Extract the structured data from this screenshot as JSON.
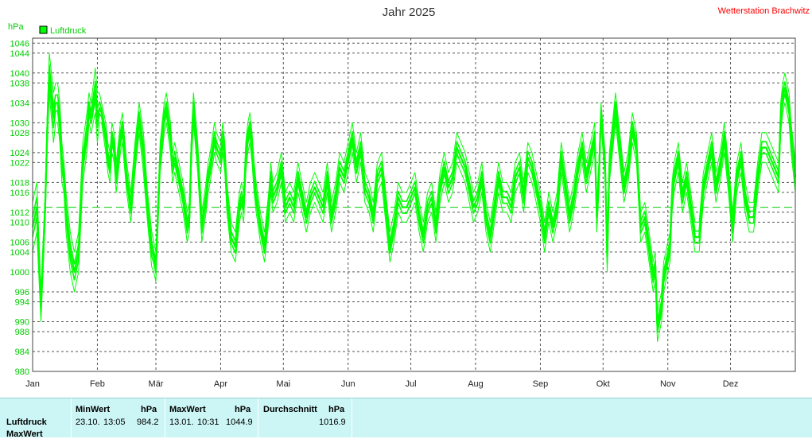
{
  "header": {
    "title": "Jahr 2025",
    "station": "Wetterstation Brachwitz",
    "unit": "hPa"
  },
  "legend": {
    "label": "Luftdruck",
    "color": "#00ff00"
  },
  "chart_data": {
    "type": "line",
    "title": "Jahr 2025",
    "ylabel": "hPa",
    "ylim": [
      980,
      1047
    ],
    "xlim": [
      0,
      365
    ],
    "grid": true,
    "legend": "top-left",
    "yticks": [
      980,
      984,
      988,
      990,
      994,
      996,
      1000,
      1004,
      1006,
      1010,
      1012,
      1016,
      1018,
      1022,
      1024,
      1028,
      1030,
      1034,
      1038,
      1040,
      1044,
      1046
    ],
    "xticks": [
      {
        "day": 0,
        "label": "Jan"
      },
      {
        "day": 31,
        "label": "Feb"
      },
      {
        "day": 59,
        "label": "Mär"
      },
      {
        "day": 90,
        "label": "Apr"
      },
      {
        "day": 120,
        "label": "Mai"
      },
      {
        "day": 151,
        "label": "Jun"
      },
      {
        "day": 181,
        "label": "Jul"
      },
      {
        "day": 212,
        "label": "Aug"
      },
      {
        "day": 243,
        "label": "Sep"
      },
      {
        "day": 273,
        "label": "Okt"
      },
      {
        "day": 304,
        "label": "Nov"
      },
      {
        "day": 334,
        "label": "Dez"
      }
    ],
    "average_line": 1013,
    "series": [
      {
        "name": "Luftdruck",
        "color": "#00ff00",
        "x": [
          0,
          2,
          4,
          5,
          6,
          7,
          8,
          10,
          11,
          12,
          13,
          14,
          15,
          16,
          18,
          20,
          22,
          24,
          26,
          27,
          28,
          30,
          31,
          32,
          33,
          35,
          36,
          37,
          38,
          39,
          40,
          42,
          43,
          45,
          47,
          49,
          51,
          53,
          55,
          57,
          58,
          59,
          61,
          63,
          64,
          66,
          67,
          68,
          70,
          72,
          74,
          75,
          76,
          77,
          79,
          81,
          83,
          84,
          85,
          87,
          88,
          90,
          91,
          92,
          93,
          95,
          97,
          99,
          100,
          101,
          102,
          103,
          104,
          105,
          106,
          107,
          109,
          111,
          113,
          114,
          115,
          117,
          119,
          121,
          123,
          125,
          127,
          129,
          131,
          133,
          135,
          137,
          139,
          141,
          143,
          145,
          147,
          149,
          151,
          153,
          155,
          157,
          159,
          161,
          163,
          165,
          167,
          169,
          171,
          173,
          175,
          177,
          179,
          181,
          183,
          185,
          187,
          189,
          191,
          193,
          195,
          197,
          199,
          201,
          203,
          205,
          207,
          209,
          211,
          213,
          215,
          217,
          219,
          221,
          223,
          225,
          227,
          229,
          231,
          233,
          235,
          237,
          239,
          241,
          243,
          245,
          247,
          249,
          251,
          253,
          255,
          257,
          259,
          261,
          263,
          265,
          267,
          269,
          270,
          271,
          272,
          274,
          275,
          276,
          277,
          278,
          279,
          281,
          283,
          285,
          287,
          289,
          291,
          293,
          295,
          297,
          298,
          299,
          301,
          302,
          303,
          305,
          306,
          307,
          309,
          311,
          313,
          315,
          317,
          319,
          321,
          323,
          325,
          327,
          329,
          331,
          333,
          335,
          337,
          339,
          341,
          343,
          345,
          347,
          349,
          351,
          353,
          355,
          357,
          358,
          359,
          360,
          361,
          362,
          363,
          364,
          365
        ],
        "min": [
          1004,
          1008,
          990,
          1000,
          1010,
          1025,
          1036,
          1026,
          1030,
          1030,
          1026,
          1018,
          1016,
          1008,
          1000,
          996,
          1000,
          1018,
          1024,
          1030,
          1028,
          1032,
          1026,
          1030,
          1030,
          1024,
          1020,
          1018,
          1024,
          1022,
          1016,
          1024,
          1026,
          1016,
          1010,
          1020,
          1028,
          1020,
          1010,
          1001,
          1000,
          998,
          1020,
          1028,
          1030,
          1024,
          1018,
          1020,
          1016,
          1012,
          1006,
          1008,
          1022,
          1030,
          1020,
          1006,
          1012,
          1016,
          1018,
          1024,
          1022,
          1020,
          1024,
          1020,
          1012,
          1004,
          1002,
          1010,
          1012,
          1010,
          1020,
          1024,
          1026,
          1022,
          1016,
          1012,
          1006,
          1002,
          1010,
          1016,
          1012,
          1014,
          1018,
          1010,
          1012,
          1010,
          1016,
          1012,
          1008,
          1012,
          1014,
          1012,
          1010,
          1016,
          1008,
          1012,
          1018,
          1016,
          1020,
          1024,
          1018,
          1022,
          1014,
          1012,
          1008,
          1016,
          1018,
          1010,
          1002,
          1006,
          1012,
          1010,
          1010,
          1012,
          1014,
          1008,
          1004,
          1010,
          1012,
          1006,
          1014,
          1018,
          1014,
          1016,
          1022,
          1020,
          1018,
          1014,
          1010,
          1012,
          1016,
          1008,
          1004,
          1010,
          1016,
          1012,
          1012,
          1010,
          1016,
          1018,
          1012,
          1020,
          1018,
          1014,
          1010,
          1004,
          1010,
          1006,
          1010,
          1020,
          1014,
          1008,
          1012,
          1018,
          1022,
          1016,
          1020,
          1024,
          1008,
          1016,
          1030,
          1018,
          1000,
          1018,
          1022,
          1026,
          1030,
          1022,
          1014,
          1018,
          1026,
          1022,
          1006,
          1008,
          1002,
          996,
          998,
          986,
          990,
          996,
          998,
          1002,
          1012,
          1016,
          1020,
          1012,
          1016,
          1010,
          1004,
          1004,
          1014,
          1018,
          1022,
          1014,
          1018,
          1024,
          1016,
          1006,
          1016,
          1020,
          1012,
          1008,
          1008,
          1016,
          1022,
          1022,
          1020,
          1018,
          1016,
          1028,
          1032,
          1034,
          1032,
          1030,
          1024,
          1020,
          1016
        ],
        "max": [
          1014,
          1018,
          996,
          1006,
          1016,
          1032,
          1044,
          1036,
          1038,
          1038,
          1034,
          1026,
          1022,
          1016,
          1008,
          1004,
          1008,
          1026,
          1032,
          1036,
          1034,
          1041,
          1036,
          1036,
          1034,
          1030,
          1026,
          1024,
          1030,
          1028,
          1022,
          1030,
          1032,
          1022,
          1016,
          1026,
          1034,
          1028,
          1016,
          1008,
          1006,
          1004,
          1026,
          1034,
          1036,
          1030,
          1024,
          1026,
          1022,
          1018,
          1012,
          1014,
          1028,
          1036,
          1026,
          1012,
          1018,
          1022,
          1024,
          1030,
          1028,
          1026,
          1030,
          1026,
          1018,
          1010,
          1008,
          1016,
          1018,
          1016,
          1026,
          1030,
          1032,
          1028,
          1022,
          1018,
          1012,
          1008,
          1016,
          1022,
          1018,
          1020,
          1024,
          1016,
          1018,
          1016,
          1022,
          1018,
          1014,
          1018,
          1020,
          1018,
          1016,
          1022,
          1014,
          1018,
          1024,
          1022,
          1026,
          1030,
          1024,
          1028,
          1020,
          1018,
          1014,
          1022,
          1024,
          1016,
          1008,
          1012,
          1018,
          1016,
          1016,
          1018,
          1020,
          1014,
          1010,
          1016,
          1018,
          1012,
          1020,
          1024,
          1020,
          1022,
          1028,
          1026,
          1024,
          1020,
          1016,
          1018,
          1022,
          1014,
          1010,
          1016,
          1022,
          1018,
          1018,
          1016,
          1022,
          1024,
          1018,
          1026,
          1024,
          1020,
          1016,
          1010,
          1016,
          1012,
          1016,
          1026,
          1020,
          1014,
          1018,
          1024,
          1028,
          1022,
          1026,
          1030,
          1014,
          1022,
          1034,
          1024,
          1006,
          1024,
          1028,
          1032,
          1036,
          1028,
          1020,
          1024,
          1032,
          1028,
          1012,
          1014,
          1008,
          1002,
          1004,
          992,
          996,
          1002,
          1004,
          1008,
          1018,
          1022,
          1026,
          1018,
          1022,
          1016,
          1010,
          1010,
          1020,
          1024,
          1028,
          1020,
          1024,
          1030,
          1022,
          1012,
          1022,
          1026,
          1018,
          1014,
          1014,
          1022,
          1028,
          1028,
          1026,
          1024,
          1022,
          1034,
          1038,
          1040,
          1038,
          1036,
          1030,
          1026,
          1022
        ]
      }
    ]
  },
  "stats": {
    "row_label_1": "Luftdruck",
    "row_label_2": "MaxWert",
    "min": {
      "header": "MinWert",
      "unit": "hPa",
      "date": "23.10.",
      "time": "13:05",
      "value": "984.2"
    },
    "max": {
      "header": "MaxWert",
      "unit": "hPa",
      "date": "13.01.",
      "time": "10:31",
      "value": "1044.9"
    },
    "avg": {
      "header": "Durchschnitt",
      "unit": "hPa",
      "value": "1016.9"
    }
  }
}
